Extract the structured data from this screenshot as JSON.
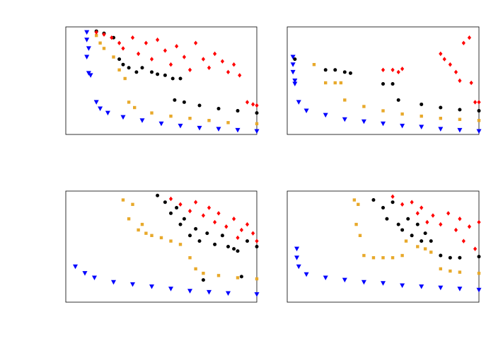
{
  "chart_data": [
    {
      "type": "scatter",
      "xlim": [
        0,
        100
      ],
      "ylim": [
        0,
        100
      ],
      "series": [
        {
          "color": "#0000ff",
          "marker": "triangle",
          "x": [
            11,
            11,
            12,
            11,
            12,
            13,
            16,
            18,
            22,
            30,
            40,
            50,
            60,
            70,
            80,
            90,
            100
          ],
          "values": [
            95,
            88,
            80,
            72,
            57,
            55,
            30,
            24,
            20,
            16,
            13,
            10,
            8,
            6,
            5,
            4,
            3
          ]
        },
        {
          "color": "#e8a92b",
          "marker": "square",
          "x": [
            16,
            18,
            20,
            25,
            28,
            31,
            33,
            36,
            45,
            55,
            65,
            75,
            85,
            100
          ],
          "values": [
            92,
            85,
            80,
            72,
            60,
            52,
            30,
            25,
            20,
            17,
            15,
            13,
            11,
            10
          ]
        },
        {
          "color": "#000000",
          "marker": "circle",
          "x": [
            16,
            20,
            25,
            28,
            30,
            33,
            37,
            40,
            45,
            48,
            52,
            56,
            60,
            57,
            62,
            70,
            80,
            90,
            100
          ],
          "values": [
            96,
            94,
            90,
            70,
            65,
            62,
            58,
            62,
            58,
            56,
            55,
            52,
            52,
            32,
            30,
            27,
            24,
            22,
            20
          ]
        },
        {
          "color": "#ff0000",
          "marker": "diamond",
          "x": [
            16,
            20,
            24,
            28,
            30,
            35,
            38,
            42,
            45,
            48,
            52,
            55,
            58,
            62,
            65,
            68,
            72,
            75,
            78,
            82,
            85,
            88,
            91,
            95,
            98,
            100
          ],
          "values": [
            95,
            93,
            90,
            85,
            80,
            90,
            75,
            85,
            70,
            88,
            78,
            65,
            82,
            72,
            60,
            85,
            70,
            62,
            75,
            68,
            58,
            65,
            55,
            30,
            28,
            27
          ]
        }
      ]
    },
    {
      "type": "scatter",
      "xlim": [
        0,
        100
      ],
      "ylim": [
        0,
        100
      ],
      "series": [
        {
          "color": "#0000ff",
          "marker": "triangle",
          "x": [
            3,
            3,
            3,
            4,
            4,
            6,
            10,
            20,
            30,
            40,
            50,
            60,
            70,
            80,
            90,
            100
          ],
          "values": [
            72,
            65,
            58,
            50,
            47,
            30,
            22,
            18,
            14,
            12,
            10,
            8,
            7,
            5,
            4,
            3
          ]
        },
        {
          "color": "#e8a92b",
          "marker": "square",
          "x": [
            14,
            20,
            25,
            28,
            30,
            40,
            50,
            60,
            70,
            80,
            90,
            100
          ],
          "values": [
            65,
            48,
            48,
            48,
            32,
            26,
            22,
            19,
            17,
            15,
            14,
            13
          ]
        },
        {
          "color": "#000000",
          "marker": "circle",
          "x": [
            4,
            20,
            25,
            30,
            33,
            50,
            55,
            58,
            70,
            80,
            90,
            100
          ],
          "values": [
            70,
            60,
            60,
            58,
            57,
            47,
            47,
            32,
            28,
            25,
            23,
            22
          ]
        },
        {
          "color": "#ff0000",
          "marker": "diamond",
          "x": [
            50,
            55,
            58,
            60,
            80,
            82,
            85,
            88,
            90,
            92,
            95,
            96,
            98,
            100
          ],
          "values": [
            60,
            60,
            58,
            61,
            75,
            70,
            65,
            58,
            50,
            85,
            90,
            48,
            30,
            30
          ]
        }
      ]
    },
    {
      "type": "scatter",
      "xlim": [
        0,
        100
      ],
      "ylim": [
        0,
        100
      ],
      "series": [
        {
          "color": "#0000ff",
          "marker": "triangle",
          "x": [
            5,
            10,
            15,
            25,
            35,
            45,
            55,
            65,
            75,
            85,
            100
          ],
          "values": [
            32,
            26,
            22,
            18,
            16,
            14,
            12,
            10,
            9,
            8,
            7
          ]
        },
        {
          "color": "#e8a92b",
          "marker": "square",
          "x": [
            30,
            35,
            33,
            40,
            42,
            45,
            50,
            38,
            55,
            60,
            65,
            68,
            72,
            80,
            90,
            100
          ],
          "values": [
            92,
            88,
            75,
            70,
            62,
            60,
            58,
            65,
            55,
            52,
            40,
            30,
            26,
            24,
            22,
            21
          ]
        },
        {
          "color": "#000000",
          "marker": "circle",
          "x": [
            48,
            52,
            55,
            58,
            60,
            62,
            65,
            68,
            70,
            74,
            78,
            82,
            85,
            88,
            90,
            95,
            100,
            72,
            92
          ],
          "values": [
            96,
            90,
            80,
            85,
            70,
            75,
            60,
            66,
            55,
            62,
            52,
            60,
            50,
            48,
            46,
            55,
            50,
            20,
            23
          ]
        },
        {
          "color": "#ff0000",
          "marker": "diamond",
          "x": [
            55,
            60,
            65,
            68,
            72,
            75,
            78,
            80,
            84,
            88,
            90,
            92,
            95,
            98,
            100
          ],
          "values": [
            93,
            88,
            82,
            90,
            78,
            85,
            72,
            80,
            68,
            75,
            58,
            65,
            70,
            62,
            55
          ]
        }
      ]
    },
    {
      "type": "scatter",
      "xlim": [
        0,
        100
      ],
      "ylim": [
        0,
        100
      ],
      "series": [
        {
          "color": "#0000ff",
          "marker": "triangle",
          "x": [
            5,
            5,
            6,
            10,
            20,
            30,
            40,
            50,
            60,
            70,
            80,
            90,
            100
          ],
          "values": [
            48,
            40,
            32,
            25,
            22,
            20,
            18,
            17,
            15,
            14,
            13,
            12,
            11
          ]
        },
        {
          "color": "#e8a92b",
          "marker": "square",
          "x": [
            35,
            37,
            36,
            38,
            40,
            45,
            50,
            55,
            60,
            62,
            68,
            72,
            75,
            80,
            85,
            90,
            100
          ],
          "values": [
            92,
            88,
            70,
            60,
            42,
            40,
            40,
            40,
            42,
            55,
            50,
            48,
            45,
            30,
            28,
            27,
            26
          ]
        },
        {
          "color": "#000000",
          "marker": "circle",
          "x": [
            45,
            50,
            55,
            52,
            58,
            60,
            63,
            65,
            68,
            70,
            72,
            75,
            80,
            85,
            90,
            100
          ],
          "values": [
            92,
            85,
            90,
            75,
            70,
            65,
            75,
            60,
            70,
            55,
            62,
            55,
            42,
            40,
            40,
            41
          ]
        },
        {
          "color": "#ff0000",
          "marker": "diamond",
          "x": [
            55,
            60,
            65,
            68,
            70,
            73,
            76,
            80,
            84,
            88,
            90,
            92,
            95,
            98,
            100
          ],
          "values": [
            95,
            88,
            90,
            80,
            85,
            72,
            78,
            70,
            80,
            65,
            75,
            55,
            68,
            48,
            72
          ]
        }
      ]
    }
  ]
}
